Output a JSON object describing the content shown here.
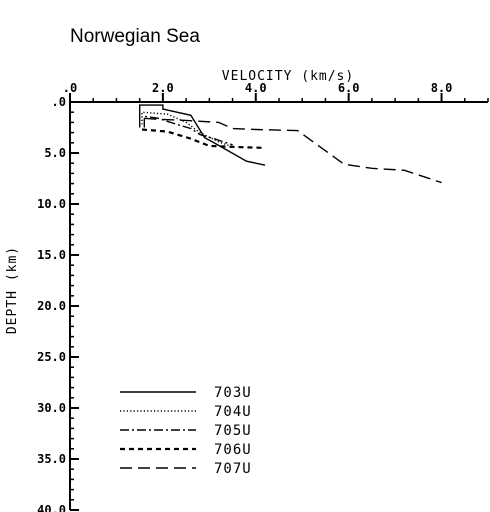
{
  "chart_data": {
    "type": "line",
    "title": "Norwegian Sea",
    "xlabel": "VELOCITY (km/s)",
    "ylabel": "DEPTH (km)",
    "xlim": [
      0,
      9.0
    ],
    "ylim": [
      0,
      40
    ],
    "y_inverted": true,
    "x_axis_position": "top",
    "x_ticks": [
      {
        "value": 0,
        "label": ".0"
      },
      {
        "value": 2,
        "label": "2.0"
      },
      {
        "value": 4,
        "label": "4.0"
      },
      {
        "value": 6,
        "label": "6.0"
      },
      {
        "value": 8,
        "label": "8.0"
      }
    ],
    "y_ticks": [
      {
        "value": 0,
        "label": ".0"
      },
      {
        "value": 5,
        "label": "5.0"
      },
      {
        "value": 10,
        "label": "10.0"
      },
      {
        "value": 15,
        "label": "15.0"
      },
      {
        "value": 20,
        "label": "20.0"
      },
      {
        "value": 25,
        "label": "25.0"
      },
      {
        "value": 30,
        "label": "30.0"
      },
      {
        "value": 35,
        "label": "35.0"
      },
      {
        "value": 40,
        "label": "40.0"
      }
    ],
    "legend_position": "bottom-left",
    "series": [
      {
        "name": "703U",
        "dash": "solid",
        "points": [
          [
            1.5,
            2.5
          ],
          [
            1.5,
            0.3
          ],
          [
            2.0,
            0.3
          ],
          [
            2.0,
            0.7
          ],
          [
            2.6,
            1.3
          ],
          [
            2.9,
            3.5
          ],
          [
            3.1,
            4.0
          ],
          [
            3.8,
            5.8
          ],
          [
            4.2,
            6.2
          ]
        ]
      },
      {
        "name": "704U",
        "dash": "dotted",
        "points": [
          [
            1.55,
            2.2
          ],
          [
            1.55,
            1.0
          ],
          [
            2.1,
            1.2
          ],
          [
            2.2,
            1.4
          ],
          [
            2.5,
            2.0
          ],
          [
            2.8,
            3.0
          ],
          [
            3.2,
            3.9
          ],
          [
            3.5,
            4.4
          ]
        ]
      },
      {
        "name": "705U",
        "dash": "dashdot",
        "points": [
          [
            1.6,
            2.5
          ],
          [
            1.6,
            1.4
          ],
          [
            1.9,
            1.6
          ],
          [
            2.3,
            2.2
          ],
          [
            2.6,
            2.6
          ],
          [
            2.8,
            3.2
          ],
          [
            3.1,
            3.6
          ],
          [
            3.5,
            4.2
          ]
        ]
      },
      {
        "name": "706U",
        "dash": "dashed-heavy",
        "points": [
          [
            1.55,
            2.7
          ],
          [
            2.1,
            2.9
          ],
          [
            2.6,
            3.6
          ],
          [
            3.0,
            4.3
          ],
          [
            3.5,
            4.4
          ],
          [
            4.2,
            4.5
          ]
        ]
      },
      {
        "name": "707U",
        "dash": "longdash",
        "points": [
          [
            1.6,
            1.6
          ],
          [
            1.9,
            1.7
          ],
          [
            2.5,
            1.8
          ],
          [
            3.2,
            2.0
          ],
          [
            3.5,
            2.6
          ],
          [
            4.0,
            2.7
          ],
          [
            4.9,
            2.8
          ],
          [
            5.9,
            6.1
          ],
          [
            6.5,
            6.5
          ],
          [
            7.2,
            6.7
          ],
          [
            8.0,
            7.9
          ]
        ]
      }
    ]
  }
}
